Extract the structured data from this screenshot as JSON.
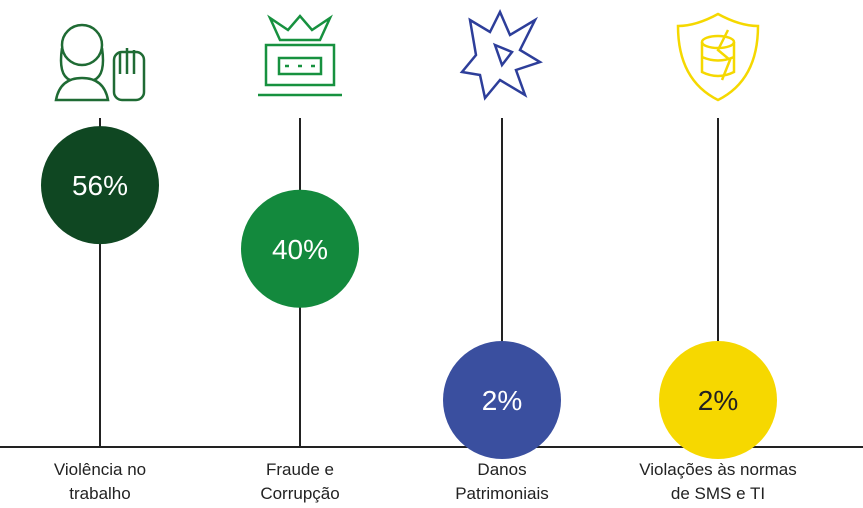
{
  "chart_data": {
    "type": "lollipop",
    "categories": [
      "Violência no\ntrabalho",
      "Fraude e\nCorrupção",
      "Danos\nPatrimoniais",
      "Violações às normas\nde SMS e TI"
    ],
    "values": [
      56,
      40,
      2,
      2
    ],
    "value_labels": [
      "56%",
      "40%",
      "2%",
      "2%"
    ],
    "colors": [
      "#0f4722",
      "#13893d",
      "#3a4f9f",
      "#f6d800"
    ]
  }
}
